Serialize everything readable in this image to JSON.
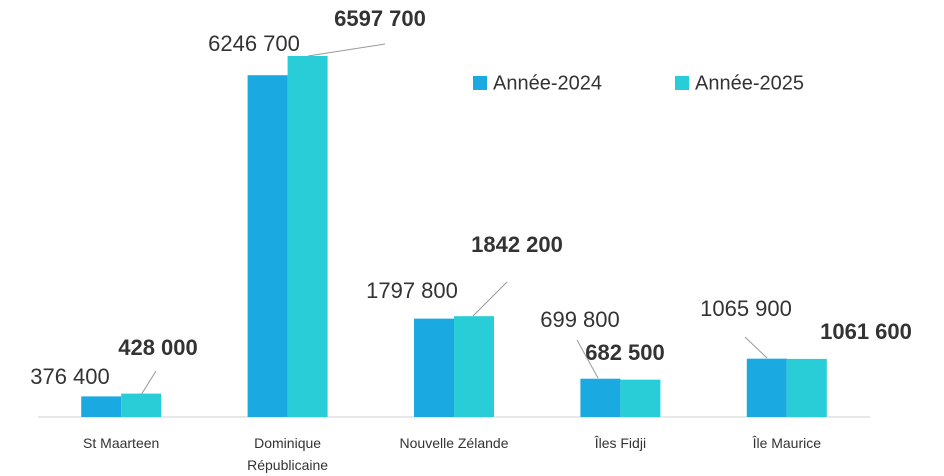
{
  "chart_data": {
    "type": "bar",
    "categories": [
      "St Maarteen",
      "Dominique Républicaine",
      "Nouvelle Zélande",
      "Îles Fidji",
      "Île Maurice"
    ],
    "series": [
      {
        "name": "Année-2024",
        "color": "#1aa9e1",
        "values": [
          376400,
          6246700,
          1797800,
          699800,
          1065900
        ],
        "value_labels": [
          "376 400",
          "6246 700",
          "1797 800",
          "699 800",
          "1065 900"
        ]
      },
      {
        "name": "Année-2025",
        "color": "#28cdd7",
        "values": [
          428000,
          6597700,
          1842200,
          682500,
          1061600
        ],
        "value_labels": [
          "428 000",
          "6597 700",
          "1842 200",
          "682 500",
          "1061 600"
        ]
      }
    ],
    "legend": "top-right"
  }
}
